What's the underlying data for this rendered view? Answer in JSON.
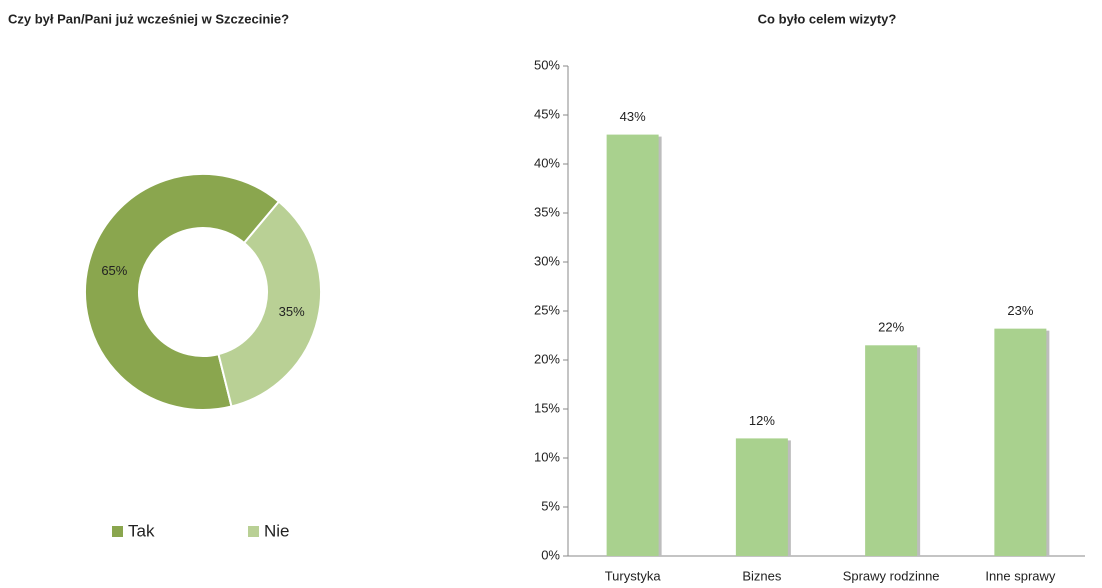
{
  "chart_data": [
    {
      "type": "donut",
      "title": "Czy był Pan/Pani już wcześniej w Szczecinie?",
      "categories": [
        "Tak",
        "Nie"
      ],
      "values": [
        65,
        35
      ],
      "value_labels": [
        "65%",
        "35%"
      ],
      "colors": [
        "#8aa64e",
        "#b9d095"
      ],
      "legend": "bottom"
    },
    {
      "type": "bar",
      "title": "Co było celem wizyty?",
      "categories": [
        "Turystyka",
        "Biznes",
        "Sprawy rodzinne",
        "Inne sprawy"
      ],
      "values": [
        43,
        12,
        21.5,
        23.2
      ],
      "value_labels": [
        "43%",
        "12%",
        "22%",
        "23%"
      ],
      "color": "#a9d18e",
      "ylim": [
        0,
        50
      ],
      "yticks": [
        {
          "value": 0,
          "label": "0%"
        },
        {
          "value": 5,
          "label": "5%"
        },
        {
          "value": 10,
          "label": "10%"
        },
        {
          "value": 15,
          "label": "15%"
        },
        {
          "value": 20,
          "label": "20%"
        },
        {
          "value": 25,
          "label": "25%"
        },
        {
          "value": 30,
          "label": "30%"
        },
        {
          "value": 35,
          "label": "35%"
        },
        {
          "value": 40,
          "label": "40%"
        },
        {
          "value": 45,
          "label": "45%"
        },
        {
          "value": 50,
          "label": "50%"
        }
      ],
      "grid": false
    }
  ]
}
